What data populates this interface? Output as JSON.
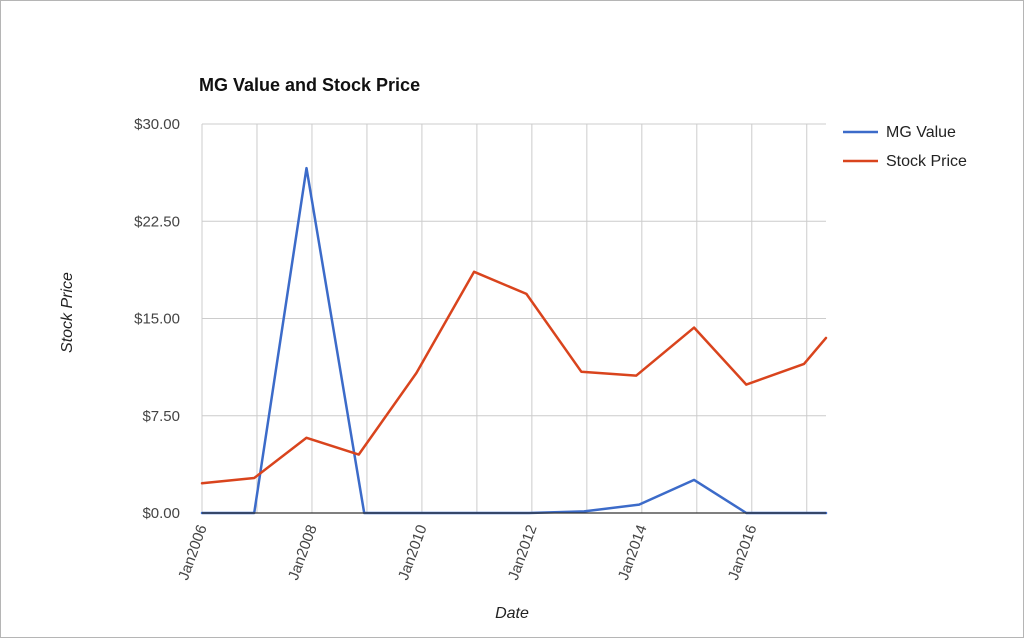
{
  "chart_data": {
    "type": "line",
    "title": "MG Value and Stock Price",
    "xlabel": "Date",
    "ylabel": "Stock Price",
    "x_tick_labels": [
      "Jan2006",
      "Jan2008",
      "Jan2010",
      "Jan2012",
      "Jan2014",
      "Jan2016"
    ],
    "y_tick_labels": [
      "$0.00",
      "$7.50",
      "$15.00",
      "$22.50",
      "$30.00"
    ],
    "xlim": [
      2006,
      2017.35
    ],
    "ylim": [
      0,
      30
    ],
    "grid": true,
    "legend_position": "right",
    "series": [
      {
        "name": "MG Value",
        "color": "#3c6bc9",
        "points": [
          [
            2006,
            0
          ],
          [
            2006.95,
            0
          ],
          [
            2007.9,
            26.6
          ],
          [
            2008.95,
            0
          ],
          [
            2009.95,
            0
          ],
          [
            2010.95,
            0
          ],
          [
            2011.95,
            0
          ],
          [
            2012.95,
            0.12
          ],
          [
            2013.95,
            0.65
          ],
          [
            2014.95,
            2.55
          ],
          [
            2015.9,
            0
          ],
          [
            2016.95,
            0
          ],
          [
            2017.35,
            0
          ]
        ]
      },
      {
        "name": "Stock Price",
        "color": "#d9441d",
        "points": [
          [
            2006,
            2.3
          ],
          [
            2006.95,
            2.7
          ],
          [
            2007.9,
            5.8
          ],
          [
            2008.85,
            4.5
          ],
          [
            2009.9,
            10.8
          ],
          [
            2010.95,
            18.6
          ],
          [
            2011.9,
            16.9
          ],
          [
            2012.9,
            10.9
          ],
          [
            2013.9,
            10.6
          ],
          [
            2014.95,
            14.3
          ],
          [
            2015.9,
            9.9
          ],
          [
            2016.95,
            11.5
          ],
          [
            2017.35,
            13.5
          ]
        ]
      }
    ]
  }
}
